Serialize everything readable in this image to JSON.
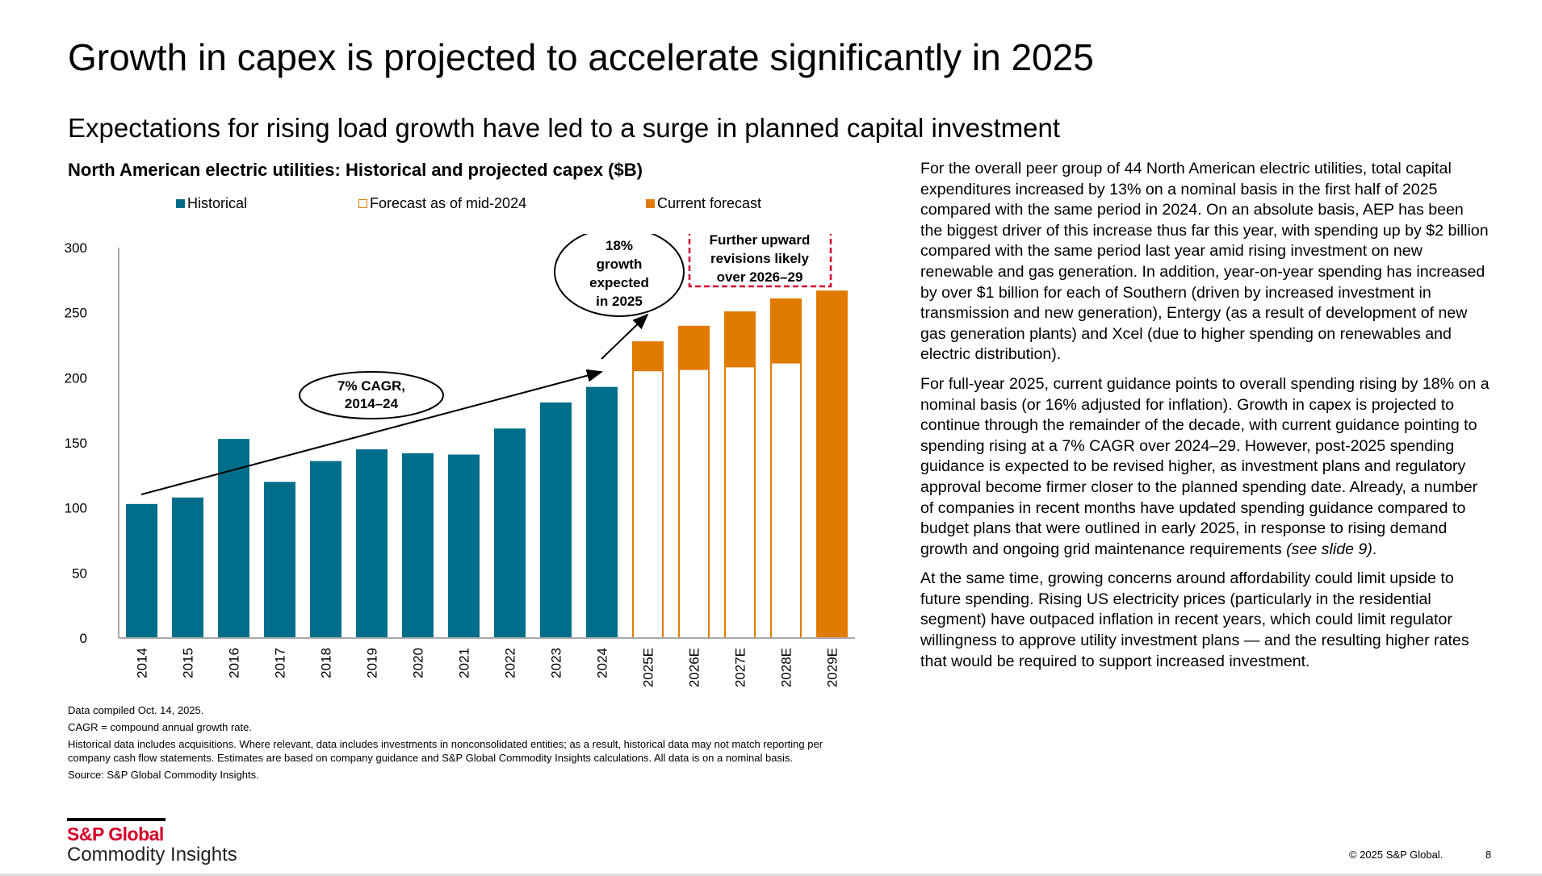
{
  "header": {
    "title": "Growth in capex is projected to accelerate significantly in 2025",
    "subtitle": "Expectations for rising load growth have led to a surge in planned capital investment"
  },
  "chart_data": {
    "type": "bar",
    "title": "North American electric utilities: Historical and projected capex ($B)",
    "xlabel": "",
    "ylabel": "",
    "ylim": [
      0,
      300
    ],
    "yticks": [
      "0",
      "50",
      "100",
      "150",
      "200",
      "250",
      "300"
    ],
    "categories": [
      "2014",
      "2015",
      "2016",
      "2017",
      "2018",
      "2019",
      "2020",
      "2021",
      "2022",
      "2023",
      "2024",
      "2025E",
      "2026E",
      "2027E",
      "2028E",
      "2029E"
    ],
    "series": [
      {
        "name": "Historical",
        "color": "#006e8a",
        "values": [
          103,
          108,
          153,
          120,
          136,
          145,
          142,
          141,
          161,
          181,
          193,
          null,
          null,
          null,
          null,
          null
        ]
      },
      {
        "name": "Forecast as of mid-2024",
        "color": "#e07b00",
        "values": [
          null,
          null,
          null,
          null,
          null,
          null,
          null,
          null,
          null,
          null,
          null,
          205,
          206,
          208,
          211,
          null
        ]
      },
      {
        "name": "Current forecast",
        "color": "#e07b00",
        "values": [
          null,
          null,
          null,
          null,
          null,
          null,
          null,
          null,
          null,
          null,
          null,
          228,
          240,
          251,
          261,
          267
        ]
      }
    ],
    "legend_position": "top",
    "grid": false,
    "annotations": {
      "cagr": [
        "7% CAGR,",
        "2014–24"
      ],
      "growth": [
        "18%",
        "growth",
        "expected",
        "in 2025"
      ],
      "revisions": [
        "Further upward",
        "revisions likely",
        "over 2026–29"
      ]
    }
  },
  "body": {
    "p1": "For the overall peer group of 44 North American electric utilities, total capital expenditures increased by 13% on a nominal basis in the first half of 2025 compared with the same period in 2024. On an absolute basis, AEP has been the biggest driver of this increase thus far this year, with spending up by $2 billion compared with the same period last year amid rising investment on new renewable and gas generation. In addition, year-on-year spending has increased by over $1 billion for each of Southern (driven by increased investment in transmission and new generation), Entergy (as a result of development of new gas generation plants) and Xcel (due to higher spending on renewables and electric distribution).",
    "p2": "For full-year 2025, current guidance points to overall spending rising by 18% on a nominal basis (or 16% adjusted for inflation). Growth in capex is projected to continue through the remainder of the decade, with current guidance pointing to spending rising at a 7% CAGR over 2024–29. However, post-2025 spending guidance is expected to be revised higher, as investment plans and regulatory approval become firmer closer to the planned spending date. Already, a number of companies in recent months have updated spending guidance compared to budget plans that were outlined in early 2025, in response to rising demand growth and ongoing grid maintenance requirements ",
    "p2_italic": "(see slide 9)",
    "p2_end": ".",
    "p3": "At the same time, growing concerns around affordability could limit upside to future spending. Rising US electricity prices (particularly in the residential segment) have outpaced inflation in recent years, which could limit regulator willingness to approve utility investment plans — and the resulting higher rates that would be required to support increased investment."
  },
  "notes": {
    "compiled": "Data compiled Oct. 14, 2025.",
    "cagr": "CAGR = compound annual growth rate.",
    "historical": "Historical data includes acquisitions. Where relevant, data includes investments in nonconsolidated entities; as a result, historical data may not match reporting per company cash flow statements. Estimates are based on company guidance and S&P Global Commodity Insights calculations. All data is on a nominal basis.",
    "source": "Source: S&P Global Commodity Insights."
  },
  "footer": {
    "logo_line1": "S&P Global",
    "logo_line2": "Commodity Insights",
    "copyright": "© 2025 S&P Global.",
    "page": "8"
  }
}
